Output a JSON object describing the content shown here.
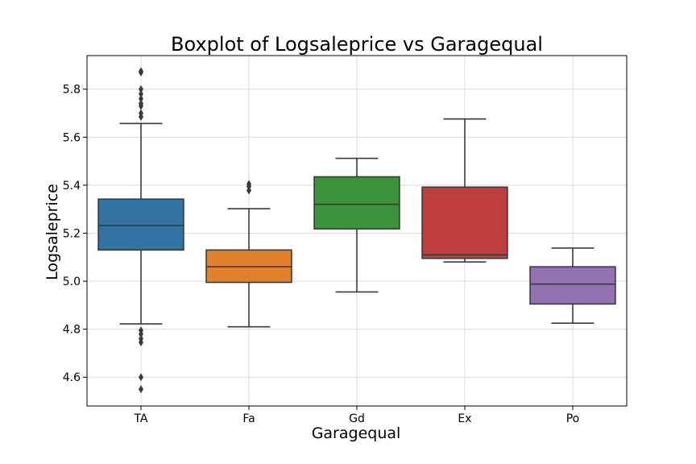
{
  "chart_data": {
    "type": "box",
    "title": "Boxplot of Logsaleprice vs Garagequal",
    "xlabel": "Garagequal",
    "ylabel": "Logsaleprice",
    "ylim": [
      4.48,
      5.94
    ],
    "yticks": [
      4.6,
      4.8,
      5.0,
      5.2,
      5.4,
      5.6,
      5.8
    ],
    "ytick_labels": [
      "4.6",
      "4.8",
      "5.0",
      "5.2",
      "5.4",
      "5.6",
      "5.8"
    ],
    "grid": true,
    "categories": [
      "TA",
      "Fa",
      "Gd",
      "Ex",
      "Po"
    ],
    "boxes": [
      {
        "category": "TA",
        "color": "#3274a1",
        "whisker_low": 4.822,
        "q1": 5.13,
        "median": 5.232,
        "q3": 5.342,
        "whisker_high": 5.657,
        "outliers": [
          5.685,
          5.7,
          5.73,
          5.74,
          5.76,
          5.78,
          5.8,
          5.87,
          5.875,
          4.795,
          4.78,
          4.76,
          4.745,
          4.6,
          4.55
        ]
      },
      {
        "category": "Fa",
        "color": "#e1812c",
        "whisker_low": 4.81,
        "q1": 4.995,
        "median": 5.06,
        "q3": 5.13,
        "whisker_high": 5.302,
        "outliers": [
          5.378,
          5.395,
          5.405
        ]
      },
      {
        "category": "Gd",
        "color": "#3a923a",
        "whisker_low": 4.955,
        "q1": 5.218,
        "median": 5.32,
        "q3": 5.435,
        "whisker_high": 5.512,
        "outliers": []
      },
      {
        "category": "Ex",
        "color": "#c03d3e",
        "whisker_low": 5.08,
        "q1": 5.095,
        "median": 5.11,
        "q3": 5.392,
        "whisker_high": 5.676,
        "outliers": []
      },
      {
        "category": "Po",
        "color": "#9372b2",
        "whisker_low": 4.825,
        "q1": 4.905,
        "median": 4.988,
        "q3": 5.06,
        "whisker_high": 5.138,
        "outliers": []
      }
    ]
  }
}
